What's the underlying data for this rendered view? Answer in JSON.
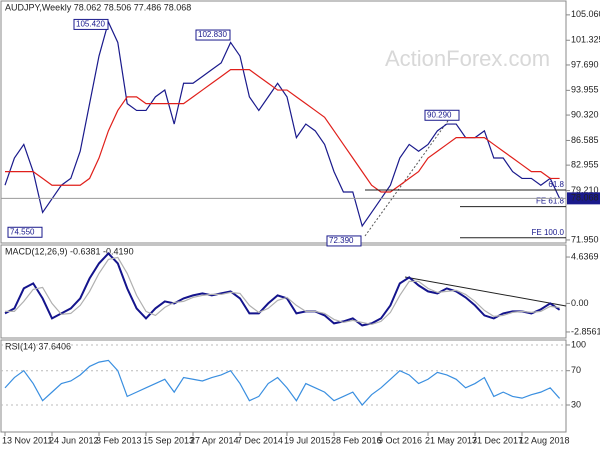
{
  "chart_data": [
    {
      "type": "line",
      "title": "AUDJPY,Weekly  78.062 78.506 77.486 78.068",
      "watermark": "ActionForex.com",
      "categories": [
        "13 Nov 2011",
        null,
        null,
        null,
        null,
        "24 Jun 2012",
        null,
        null,
        null,
        null,
        "3 Feb 2013",
        null,
        null,
        null,
        null,
        "15 Sep 2013",
        null,
        null,
        null,
        null,
        "27 Apr 2014",
        null,
        null,
        null,
        null,
        "7 Dec 2014",
        null,
        null,
        null,
        null,
        "19 Jul 2015",
        null,
        null,
        null,
        null,
        "28 Feb 2016",
        null,
        null,
        null,
        null,
        "9 Oct 2016",
        null,
        null,
        null,
        null,
        "21 May 2017",
        null,
        null,
        null,
        null,
        "31 Dec 2017",
        null,
        null,
        null,
        null,
        "12 Aug 2018",
        null,
        null,
        null,
        null
      ],
      "series": [
        {
          "color": "#1a1a8c",
          "values": [
            80,
            84,
            86,
            82,
            76,
            78,
            80,
            81,
            85,
            92,
            99,
            104,
            101,
            92,
            91,
            91,
            93,
            94,
            89,
            95,
            95,
            96,
            97,
            98,
            101,
            99,
            93,
            91,
            93,
            95,
            93,
            87,
            89,
            88,
            86,
            82,
            79,
            79,
            74,
            76,
            78,
            80,
            84,
            86,
            85,
            86,
            88,
            89,
            89,
            87,
            87,
            88,
            84,
            84,
            82,
            81,
            81,
            80,
            81,
            78.068
          ]
        },
        {
          "color": "#e0201b",
          "values": [
            82,
            82,
            82,
            82,
            81,
            80,
            80,
            80,
            80,
            81,
            84,
            88,
            91,
            93,
            93,
            92,
            92,
            92,
            92,
            92,
            93,
            94,
            95,
            96,
            97,
            97,
            97,
            96,
            95,
            94,
            94,
            93,
            92,
            91,
            90,
            88,
            86,
            84,
            82,
            80,
            79,
            79,
            80,
            81,
            82,
            84,
            85,
            86,
            87,
            87,
            87,
            87,
            86,
            85,
            84,
            83,
            82,
            82,
            81,
            81
          ]
        }
      ],
      "ylim": [
        71.5,
        107.1
      ],
      "yticks": [
        {
          "value": 105.06,
          "label": "105.060"
        },
        101.325,
        {
          "value": 97.69,
          "label": "97.690"
        },
        93.955,
        {
          "value": 90.32,
          "label": "90.320"
        },
        86.585,
        82.955,
        {
          "value": 79.21,
          "label": "79.210"
        },
        {
          "value": 71.95,
          "label": "71.950"
        }
      ],
      "last_value": 78.068,
      "peaks": [
        {
          "value": 105.42,
          "label": "105.420"
        },
        {
          "value": 102.83,
          "label": "102.830"
        },
        {
          "value": 90.29,
          "label": "90.290"
        },
        {
          "value": 74.55,
          "label": "74.550"
        },
        {
          "value": 72.39,
          "label": "72.390"
        }
      ],
      "levels": [
        {
          "value": 79.3,
          "label": "61.8"
        },
        {
          "value": 76.85,
          "label": "FE 61.8"
        },
        {
          "value": 72.27,
          "label": "FE 100.0"
        }
      ]
    },
    {
      "type": "line",
      "title": "MACD(12,26,9) -0.6381 -0.4190",
      "series": [
        {
          "color": "#14148c",
          "values": [
            -1,
            -0.5,
            1.5,
            2,
            0.5,
            -1.5,
            -1,
            -0.5,
            0.5,
            2.5,
            4,
            5,
            4,
            1.5,
            -0.5,
            -1.5,
            -0.5,
            0.2,
            0,
            0.5,
            0.8,
            1,
            0.8,
            1,
            1.2,
            0.5,
            -1,
            -1,
            0,
            0.8,
            0.5,
            -1,
            -0.8,
            -0.8,
            -1.2,
            -2,
            -1.8,
            -1.5,
            -2.2,
            -2,
            -1.5,
            -0.2,
            2,
            2.6,
            1.8,
            1.2,
            1,
            1.5,
            1.2,
            0.6,
            -0.2,
            -1.2,
            -1.5,
            -1,
            -0.8,
            -0.8,
            -1,
            -0.6,
            0,
            -0.6381
          ]
        },
        {
          "color": "#b0b0b0",
          "values": [
            -0.8,
            -0.8,
            0.2,
            1.4,
            1.6,
            0,
            -1.1,
            -1,
            -0.2,
            1.2,
            3,
            4.4,
            4.6,
            3,
            0.8,
            -0.8,
            -1.2,
            -0.4,
            0.1,
            0.2,
            0.6,
            0.8,
            0.9,
            0.9,
            1.1,
            1,
            -0.2,
            -0.9,
            -0.5,
            0.3,
            0.6,
            -0.2,
            -0.8,
            -0.8,
            -1,
            -1.6,
            -1.9,
            -1.7,
            -1.9,
            -2.1,
            -1.8,
            -0.9,
            0.8,
            2.2,
            2.2,
            1.5,
            1.1,
            1.2,
            1.3,
            0.9,
            0.2,
            -0.7,
            -1.3,
            -1.2,
            -0.9,
            -0.8,
            -0.9,
            -0.8,
            -0.3,
            -0.419
          ]
        }
      ],
      "ylim": [
        -3.46,
        5.84
      ],
      "yticks": [
        4.6369,
        {
          "value": 0,
          "label": "0.00"
        },
        -2.8561
      ]
    },
    {
      "type": "line",
      "title": "RSI(14) 37.6406",
      "series": [
        {
          "color": "#3a8fe0",
          "values": [
            50,
            62,
            70,
            55,
            35,
            45,
            55,
            58,
            65,
            75,
            80,
            82,
            70,
            40,
            45,
            50,
            55,
            60,
            45,
            62,
            60,
            58,
            62,
            65,
            70,
            55,
            35,
            40,
            55,
            62,
            50,
            35,
            55,
            50,
            45,
            35,
            40,
            45,
            30,
            42,
            50,
            60,
            70,
            65,
            55,
            60,
            68,
            65,
            60,
            50,
            55,
            62,
            40,
            45,
            40,
            38,
            42,
            45,
            50,
            37.6406
          ]
        }
      ],
      "ylim": [
        -1.5,
        105.8
      ],
      "yticks": [
        100,
        70,
        30
      ]
    }
  ]
}
